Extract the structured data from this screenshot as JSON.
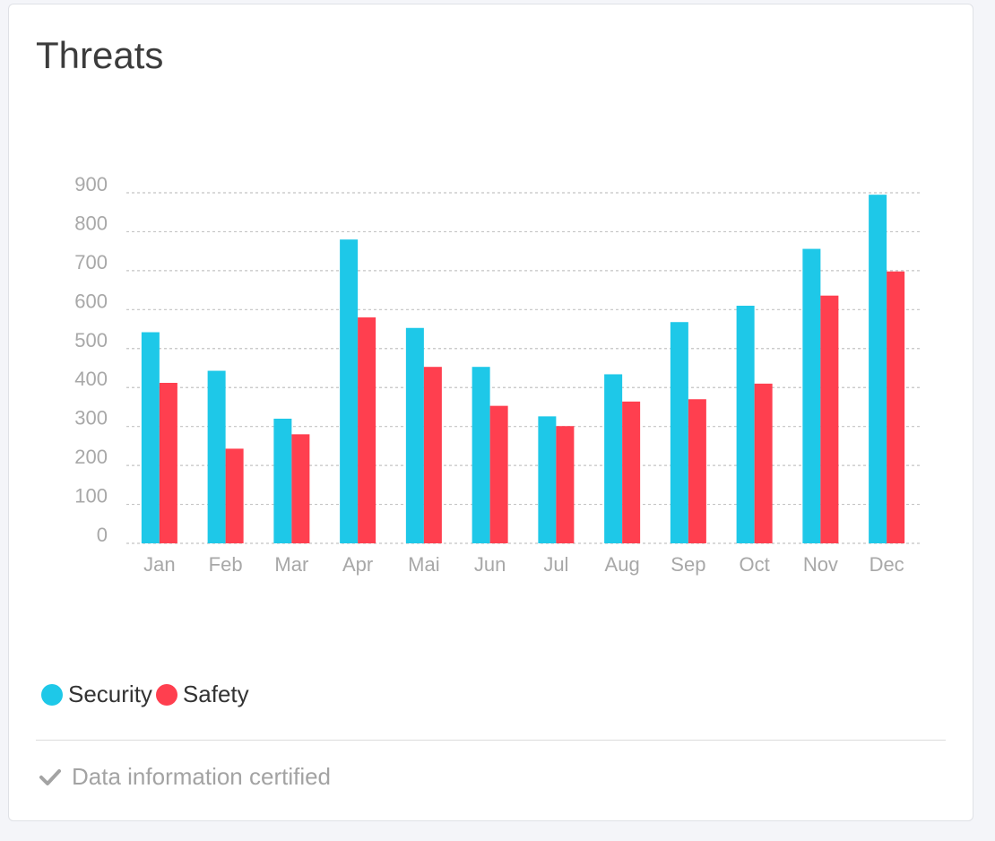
{
  "card": {
    "title": "Threats",
    "footer_text": "Data information certified",
    "footer_icon": "check-icon"
  },
  "legend": [
    {
      "label": "Security",
      "color": "#1ec8e8"
    },
    {
      "label": "Safety",
      "color": "#ff3f4f"
    }
  ],
  "chart_data": {
    "type": "bar",
    "title": "Threats",
    "xlabel": "",
    "ylabel": "",
    "categories": [
      "Jan",
      "Feb",
      "Mar",
      "Apr",
      "Mai",
      "Jun",
      "Jul",
      "Aug",
      "Sep",
      "Oct",
      "Nov",
      "Dec"
    ],
    "series": [
      {
        "name": "Security",
        "color": "#1ec8e8",
        "values": [
          542,
          443,
          320,
          780,
          553,
          453,
          326,
          434,
          568,
          610,
          756,
          895
        ]
      },
      {
        "name": "Safety",
        "color": "#ff3f4f",
        "values": [
          412,
          243,
          280,
          580,
          453,
          353,
          301,
          364,
          370,
          410,
          636,
          698
        ]
      }
    ],
    "ylim": [
      0,
      900
    ],
    "yticks": [
      0,
      100,
      200,
      300,
      400,
      500,
      600,
      700,
      800,
      900
    ],
    "grid": true,
    "grid_style": "dashed",
    "legend_position": "bottom-left"
  }
}
